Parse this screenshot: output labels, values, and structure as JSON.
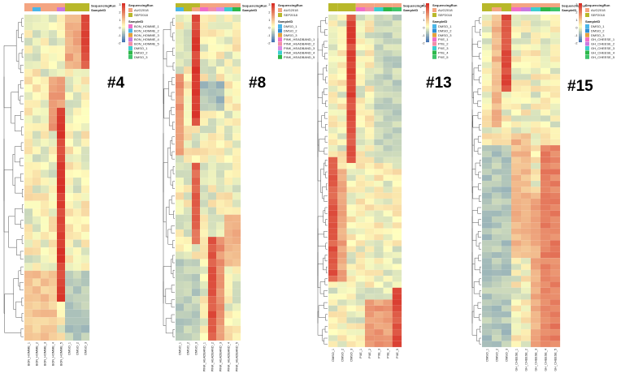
{
  "figure": {
    "colors": {
      "low": "#4575b4",
      "mid": "#ffffbf",
      "high": "#d73027",
      "tree": "#555555"
    },
    "legend_titles": {
      "run": "SequencingRun",
      "sample": "SampleID"
    },
    "run_levels": [
      {
        "name": "AUG2018",
        "color": "#f4a582"
      },
      {
        "name": "SEP2018",
        "color": "#b8b82a"
      }
    ],
    "scale_ticks": [
      "3",
      "2",
      "1",
      "0",
      "-1",
      "-2"
    ]
  },
  "chart_data": [
    {
      "type": "heatmap",
      "title": "#4",
      "rows": 42,
      "samples": [
        "BON_HOMME_1",
        "BON_HOMME_2",
        "BON_HOMME_3",
        "BON_HOMME_4",
        "BON_HOMME_5",
        "DMSO_1",
        "DMSO_2",
        "DMSO_3"
      ],
      "column_labels": [
        "BON_HOMME_1",
        "BON_HOMME_2",
        "BON_HOMME_3",
        "BON_HOMME_4",
        "BON_HOMME_5",
        "DMSO_1",
        "DMSO_2",
        "DMSO_3"
      ],
      "sample_colors": [
        "#f06ec8",
        "#4ab6e8",
        "#e6a23c",
        "#c978e0",
        "#f38ea8",
        "#3ccfd0",
        "#2db84a",
        "#3ec46a"
      ],
      "run_colors": [
        "#f4a582",
        "#f4a582",
        "#f4a582",
        "#f4a582",
        "#f4a582",
        "#b8b82a",
        "#b8b82a",
        "#b8b82a"
      ],
      "top_band_colors": [
        "#f4a582",
        "#4ab6e8",
        "#f4a582",
        "#f4a582",
        "#c978e0",
        "#b8b82a",
        "#b8b82a",
        "#b8b82a"
      ],
      "scale_range": [
        -2,
        3
      ],
      "seed": 11,
      "blocks": [
        {
          "rows": [
            0,
            6
          ],
          "cols": [
            7,
            7
          ],
          "v": 2.5
        },
        {
          "rows": [
            0,
            6
          ],
          "cols": [
            5,
            6
          ],
          "v": 1.2
        },
        {
          "rows": [
            8,
            14
          ],
          "cols": [
            3,
            4
          ],
          "v": 1.5
        },
        {
          "rows": [
            12,
            36
          ],
          "cols": [
            4,
            4
          ],
          "v": 2.8
        },
        {
          "rows": [
            33,
            41
          ],
          "cols": [
            0,
            3
          ],
          "v": 0.8
        },
        {
          "rows": [
            33,
            41
          ],
          "cols": [
            5,
            7
          ],
          "v": -0.8
        }
      ]
    },
    {
      "type": "heatmap",
      "title": "#8",
      "rows": 44,
      "samples": [
        "DMSO_1",
        "DMSO_2",
        "DMSO_3",
        "PINK_HEADBAND_1",
        "PINK_HEADBAND_2",
        "PINK_HEADBAND_3",
        "PINK_HEADBAND_4",
        "PINK_HEADBAND_5"
      ],
      "column_labels": [
        "DMSO_1",
        "DMSO_2",
        "DMSO_3",
        "PINK_HEADBAND_1",
        "PINK_HEADBAND_2",
        "PINK_HEADBAND_3",
        "PINK_HEADBAND_4",
        "PINK_HEADBAND_5"
      ],
      "sample_colors": [
        "#4ab6e8",
        "#2d8fd6",
        "#e6a23c",
        "#f06ec8",
        "#f38ea8",
        "#d88ae6",
        "#3ccfd0",
        "#2db84a"
      ],
      "run_colors": [
        "#b8b82a",
        "#b8b82a",
        "#b8b82a",
        "#f4a582",
        "#f4a582",
        "#f4a582",
        "#f4a582",
        "#f4a582"
      ],
      "top_band_colors": [
        "#4ab6e8",
        "#b8b82a",
        "#f4a582",
        "#f06ec8",
        "#f38ea8",
        "#d88ae6",
        "#3ccfd0",
        "#2db84a"
      ],
      "scale_range": [
        -2,
        3
      ],
      "seed": 23,
      "blocks": [
        {
          "rows": [
            0,
            14
          ],
          "cols": [
            2,
            2
          ],
          "v": 2.7
        },
        {
          "rows": [
            8,
            18
          ],
          "cols": [
            0,
            0
          ],
          "v": 1.5
        },
        {
          "rows": [
            9,
            12
          ],
          "cols": [
            3,
            5
          ],
          "v": -0.9
        },
        {
          "rows": [
            20,
            30
          ],
          "cols": [
            2,
            2
          ],
          "v": 2.2
        },
        {
          "rows": [
            27,
            33
          ],
          "cols": [
            6,
            7
          ],
          "v": 1.0
        },
        {
          "rows": [
            30,
            43
          ],
          "cols": [
            4,
            4
          ],
          "v": 2.5
        },
        {
          "rows": [
            30,
            43
          ],
          "cols": [
            5,
            5
          ],
          "v": 1.6
        },
        {
          "rows": [
            33,
            43
          ],
          "cols": [
            0,
            2
          ],
          "v": -0.7
        }
      ]
    },
    {
      "type": "heatmap",
      "title": "#13",
      "rows": 56,
      "samples": [
        "DMSO_1",
        "DMSO_2",
        "DMSO_3",
        "PXE_1",
        "PXE_2",
        "PXE_3",
        "PXE_4",
        "PXE_5"
      ],
      "column_labels": [
        "DMSO_1",
        "DMSO_2",
        "DMSO_3",
        "PXE_1",
        "PXE_2",
        "PXE_3",
        "PXE_4",
        "PXE_5"
      ],
      "sample_colors": [
        "#4ab6e8",
        "#2d8fd6",
        "#e6a23c",
        "#f06ec8",
        "#f38ea8",
        "#3ccfd0",
        "#2db84a",
        "#3ec46a"
      ],
      "run_colors": [
        "#b8b82a",
        "#b8b82a",
        "#b8b82a",
        "#f4a582",
        "#f4a582",
        "#f4a582",
        "#f4a582",
        "#f4a582"
      ],
      "top_band_colors": [
        "#b8b82a",
        "#b8b82a",
        "#b8b82a",
        "#f06ec8",
        "#f38ea8",
        "#3ccfd0",
        "#2db84a",
        "#3ec46a"
      ],
      "scale_range": [
        -2,
        3
      ],
      "seed": 37,
      "blocks": [
        {
          "rows": [
            0,
            24
          ],
          "cols": [
            2,
            2
          ],
          "v": 2.6
        },
        {
          "rows": [
            24,
            44
          ],
          "cols": [
            0,
            0
          ],
          "v": 2.4
        },
        {
          "rows": [
            26,
            44
          ],
          "cols": [
            1,
            1
          ],
          "v": 1.3
        },
        {
          "rows": [
            0,
            24
          ],
          "cols": [
            5,
            7
          ],
          "v": -0.6
        },
        {
          "rows": [
            46,
            55
          ],
          "cols": [
            7,
            7
          ],
          "v": 2.5
        },
        {
          "rows": [
            48,
            55
          ],
          "cols": [
            4,
            6
          ],
          "v": 1.4
        }
      ]
    },
    {
      "type": "heatmap",
      "title": "#15",
      "rows": 56,
      "samples": [
        "DMSO_1",
        "DMSO_2",
        "DMSO_3",
        "GH_CHEESE_1",
        "GH_CHEESE_2",
        "GH_CHEESE_3",
        "GH_CHEESE_4",
        "GH_CHEESE_5"
      ],
      "column_labels": [
        "DMSO_1",
        "DMSO_2",
        "DMSO_3",
        "GH_CHEESE_1",
        "GH_CHEESE_2",
        "GH_CHEESE_3",
        "GH_CHEESE_4",
        "GH_CHEESE_5"
      ],
      "sample_colors": [
        "#4ab6e8",
        "#2d8fd6",
        "#e6a23c",
        "#f06ec8",
        "#c978e0",
        "#3ccfd0",
        "#2db84a",
        "#3ec46a"
      ],
      "run_colors": [
        "#b8b82a",
        "#b8b82a",
        "#b8b82a",
        "#f4a582",
        "#f4a582",
        "#f4a582",
        "#f4a582",
        "#f4a582"
      ],
      "top_band_colors": [
        "#b8b82a",
        "#f4a582",
        "#b8b82a",
        "#f06ec8",
        "#c978e0",
        "#3ccfd0",
        "#2db84a",
        "#3ec46a"
      ],
      "scale_range": [
        -2,
        3
      ],
      "seed": 53,
      "blocks": [
        {
          "rows": [
            0,
            12
          ],
          "cols": [
            2,
            2
          ],
          "v": 2.6
        },
        {
          "rows": [
            0,
            18
          ],
          "cols": [
            1,
            1
          ],
          "v": 1.0
        },
        {
          "rows": [
            20,
            40
          ],
          "cols": [
            3,
            4
          ],
          "v": 1.0
        },
        {
          "rows": [
            22,
            55
          ],
          "cols": [
            6,
            7
          ],
          "v": 1.8
        },
        {
          "rows": [
            22,
            55
          ],
          "cols": [
            0,
            2
          ],
          "v": -0.8
        },
        {
          "rows": [
            30,
            55
          ],
          "cols": [
            5,
            5
          ],
          "v": 1.2
        }
      ]
    }
  ]
}
